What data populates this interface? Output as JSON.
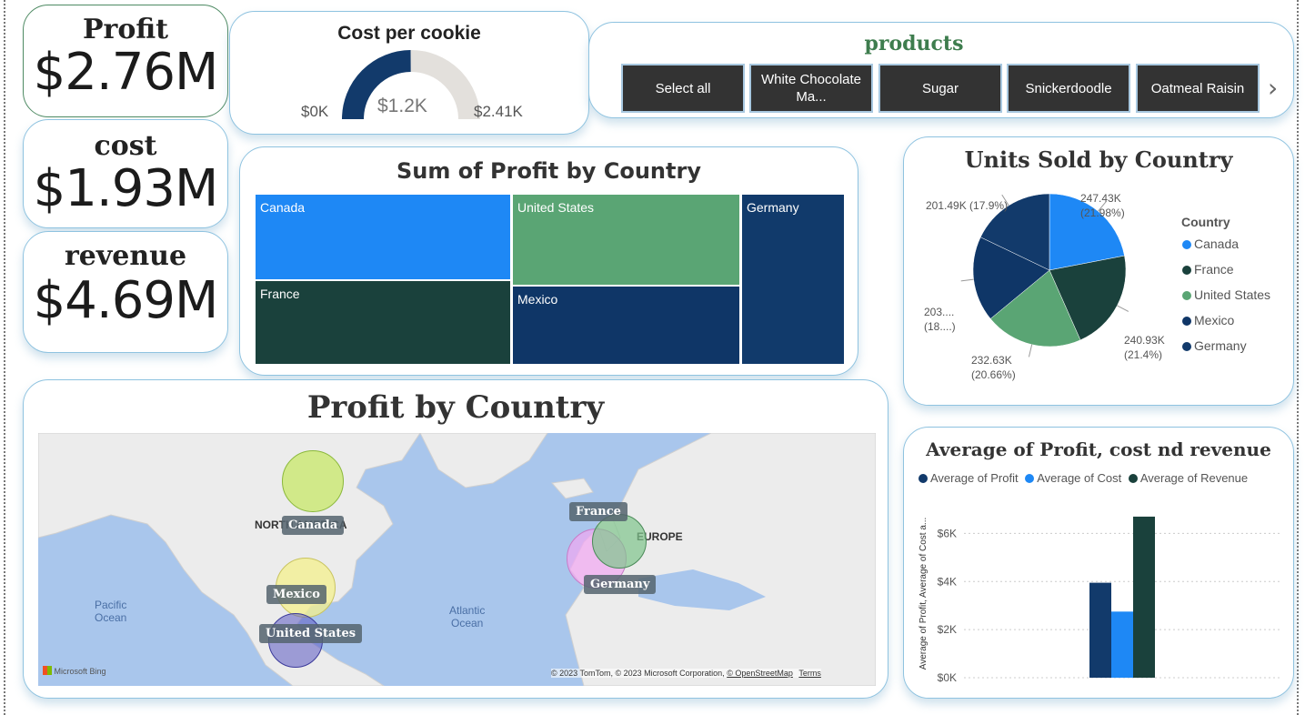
{
  "kpis": {
    "profit": {
      "title": "Profit",
      "value": "$2.76M"
    },
    "cost": {
      "title": "cost",
      "value": "$1.93M"
    },
    "revenue": {
      "title": "revenue",
      "value": "$4.69M"
    }
  },
  "gauge": {
    "title": "Cost per cookie",
    "min_label": "$0K",
    "max_label": "$2.41K",
    "value_label": "$1.2K",
    "min": 0,
    "max": 2.41,
    "value": 1.2,
    "fill_color": "#123a6b",
    "track_color": "#e3e0dc"
  },
  "products": {
    "title": "products",
    "buttons": [
      "Select all",
      "White Chocolate Ma...",
      "Sugar",
      "Snickerdoodle",
      "Oatmeal Raisin"
    ],
    "next_arrow": "›"
  },
  "treemap": {
    "title": "Sum of Profit by Country",
    "tiles": [
      {
        "label": "Canada",
        "color": "#1e88f5"
      },
      {
        "label": "United States",
        "color": "#5aa574"
      },
      {
        "label": "Germany",
        "color": "#113a6b"
      },
      {
        "label": "France",
        "color": "#1a413c"
      },
      {
        "label": "Mexico",
        "color": "#0f3667"
      }
    ]
  },
  "chart_data": [
    {
      "type": "pie",
      "title": "Units Sold by Country",
      "legend_title": "Country",
      "legend_position": "right",
      "slices": [
        {
          "name": "Canada",
          "value": 247.43,
          "label1": "247.43K",
          "label2": "(21.98%)",
          "color": "#1e88f5"
        },
        {
          "name": "France",
          "value": 240.93,
          "label1": "240.93K",
          "label2": "(21.4%)",
          "color": "#1a413c"
        },
        {
          "name": "United States",
          "value": 232.63,
          "label1": "232.63K",
          "label2": "(20.66%)",
          "color": "#5aa574"
        },
        {
          "name": "Mexico",
          "value": 203.6,
          "label1": "203....",
          "label2": "(18....)",
          "color": "#0f3667"
        },
        {
          "name": "Germany",
          "value": 201.49,
          "label1": "201.49K (17.9%)",
          "label2": "",
          "color": "#123a6b"
        }
      ],
      "legend": [
        "Canada",
        "France",
        "United States",
        "Mexico",
        "Germany"
      ]
    },
    {
      "type": "bar",
      "title": "Average of Profit, cost nd revenue",
      "ylabel": "Average of Profit, Average of Cost a...",
      "ylim": [
        0,
        7000
      ],
      "yticks": [
        0,
        2000,
        4000,
        6000
      ],
      "ytick_labels": [
        "$0K",
        "$2K",
        "$4K",
        "$6K"
      ],
      "grid": true,
      "legend_position": "top-left",
      "series": [
        {
          "name": "Average of Profit",
          "value": 3950,
          "color": "#123a6b"
        },
        {
          "name": "Average of Cost",
          "value": 2750,
          "color": "#1e88f5"
        },
        {
          "name": "Average of Revenue",
          "value": 6700,
          "color": "#1a413c"
        }
      ]
    }
  ],
  "map": {
    "title": "Profit by Country",
    "region_labels": [
      "NORTH AMERICA",
      "EUROPE"
    ],
    "ocean_labels": [
      [
        "Pacific",
        "Ocean"
      ],
      [
        "Atlantic",
        "Ocean"
      ]
    ],
    "bubble_labels": [
      "Canada",
      "Mexico",
      "United States",
      "France",
      "Germany"
    ],
    "bubble_colors": [
      "#c6e85f",
      "#f4f08c",
      "#5b5ac2",
      "#7fc48c",
      "#f2a6f2"
    ],
    "attribution": "© 2023 TomTom, © 2023 Microsoft Corporation,",
    "osm_link": "© OpenStreetMap",
    "terms_link": "Terms",
    "bing_logo": "Microsoft Bing"
  }
}
